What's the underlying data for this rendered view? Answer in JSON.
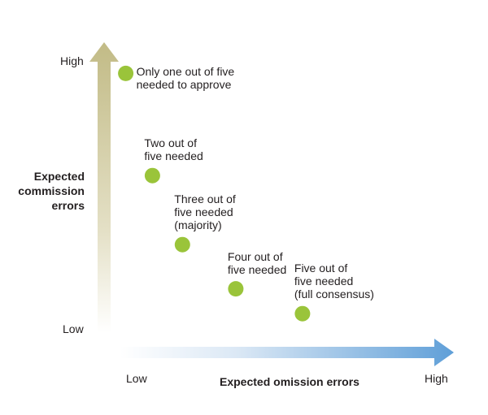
{
  "chart_data": {
    "type": "scatter",
    "title": "",
    "xlabel": "Expected omission errors",
    "ylabel_lines": [
      "Expected",
      "commission",
      "errors"
    ],
    "x_ticks": [
      "Low",
      "High"
    ],
    "y_ticks": [
      "High",
      "Low"
    ],
    "xlim": [
      0,
      1
    ],
    "ylim": [
      0,
      1
    ],
    "grid": false,
    "legend": "none",
    "point_color": "#9ac43a",
    "x_axis_color": "#5b9bd5",
    "y_axis_color": "#c4bd8a",
    "points": [
      {
        "x": 0.06,
        "y": 0.94,
        "label_lines": [
          "Only one out of five",
          "needed to approve"
        ]
      },
      {
        "x": 0.14,
        "y": 0.57,
        "label_lines": [
          "Two out of",
          "five needed"
        ]
      },
      {
        "x": 0.23,
        "y": 0.32,
        "label_lines": [
          "Three out of",
          "five needed",
          "(majority)"
        ]
      },
      {
        "x": 0.39,
        "y": 0.16,
        "label_lines": [
          "Four out of",
          "five needed"
        ]
      },
      {
        "x": 0.59,
        "y": 0.07,
        "label_lines": [
          "Five out of",
          "five needed",
          "(full consensus)"
        ]
      }
    ]
  }
}
